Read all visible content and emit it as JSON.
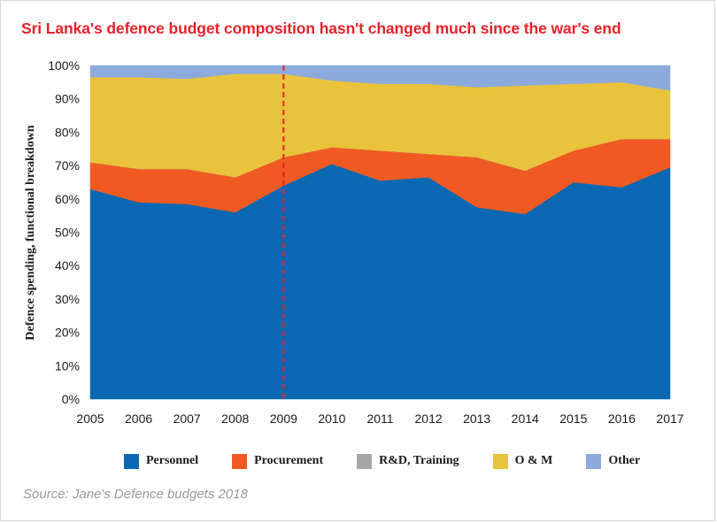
{
  "title": "Sri Lanka's defence budget composition hasn't changed much since the war's end",
  "source": "Source: Jane's Defence budgets 2018",
  "chart_data": {
    "type": "area",
    "stacked": true,
    "x": [
      "2005",
      "2006",
      "2007",
      "2008",
      "2009",
      "2010",
      "2011",
      "2012",
      "2013",
      "2014",
      "2015",
      "2016",
      "2017"
    ],
    "ylabel": "Defence spending, functional breakdown",
    "ylim": [
      0,
      100
    ],
    "yticks": [
      "0%",
      "10%",
      "20%",
      "30%",
      "40%",
      "50%",
      "60%",
      "70%",
      "80%",
      "90%",
      "100%"
    ],
    "marker_year": "2009",
    "marker_color": "#e8212a",
    "legend_position": "bottom",
    "series": [
      {
        "name": "Personnel",
        "color": "#0a68b3",
        "values": [
          63,
          59,
          58.5,
          56,
          64,
          70.5,
          65.5,
          66.5,
          57.5,
          55.5,
          65,
          63.5,
          69.5
        ]
      },
      {
        "name": "Procurement",
        "color": "#f05a22",
        "values": [
          8,
          10,
          10.5,
          10.5,
          8.5,
          5,
          9,
          7,
          15,
          13,
          9.5,
          14.5,
          8.5
        ]
      },
      {
        "name": "R&D, Training",
        "color": "#a6a6a6",
        "values": [
          0,
          0,
          0,
          0,
          0,
          0,
          0,
          0,
          0,
          0,
          0,
          0,
          0
        ]
      },
      {
        "name": "O & M",
        "color": "#e9c33b",
        "values": [
          25.5,
          27.5,
          27,
          31,
          25,
          20,
          20,
          21,
          21,
          25.5,
          20,
          17,
          14.5
        ]
      },
      {
        "name": "Other",
        "color": "#8caadb",
        "values": [
          3.5,
          3.5,
          4,
          2.5,
          2.5,
          4.5,
          5.5,
          5.5,
          6.5,
          6,
          5.5,
          5,
          7.5
        ]
      }
    ]
  }
}
